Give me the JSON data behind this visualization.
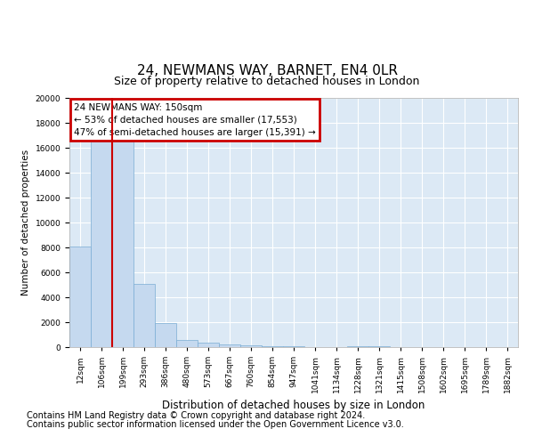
{
  "title": "24, NEWMANS WAY, BARNET, EN4 0LR",
  "subtitle": "Size of property relative to detached houses in London",
  "xlabel": "Distribution of detached houses by size in London",
  "ylabel": "Number of detached properties",
  "categories": [
    "12sqm",
    "106sqm",
    "199sqm",
    "293sqm",
    "386sqm",
    "480sqm",
    "573sqm",
    "667sqm",
    "760sqm",
    "854sqm",
    "947sqm",
    "1041sqm",
    "1134sqm",
    "1228sqm",
    "1321sqm",
    "1415sqm",
    "1508sqm",
    "1602sqm",
    "1695sqm",
    "1789sqm",
    "1882sqm"
  ],
  "values": [
    8050,
    16500,
    16500,
    5100,
    1900,
    600,
    350,
    200,
    150,
    100,
    100,
    0,
    0,
    50,
    50,
    0,
    0,
    0,
    0,
    0,
    0
  ],
  "bar_color": "#c5d9ef",
  "bar_edge_color": "#7badd4",
  "vline_color": "#cc0000",
  "annotation_title": "24 NEWMANS WAY: 150sqm",
  "annotation_line1": "← 53% of detached houses are smaller (17,553)",
  "annotation_line2": "47% of semi-detached houses are larger (15,391) →",
  "annotation_box_color": "#cc0000",
  "ylim": [
    0,
    20000
  ],
  "yticks": [
    0,
    2000,
    4000,
    6000,
    8000,
    10000,
    12000,
    14000,
    16000,
    18000,
    20000
  ],
  "bg_color": "#dce9f5",
  "footer1": "Contains HM Land Registry data © Crown copyright and database right 2024.",
  "footer2": "Contains public sector information licensed under the Open Government Licence v3.0.",
  "title_fontsize": 11,
  "subtitle_fontsize": 9,
  "tick_fontsize": 6.5,
  "ylabel_fontsize": 7.5,
  "xlabel_fontsize": 8.5,
  "footer_fontsize": 7,
  "annotation_fontsize": 7.5
}
